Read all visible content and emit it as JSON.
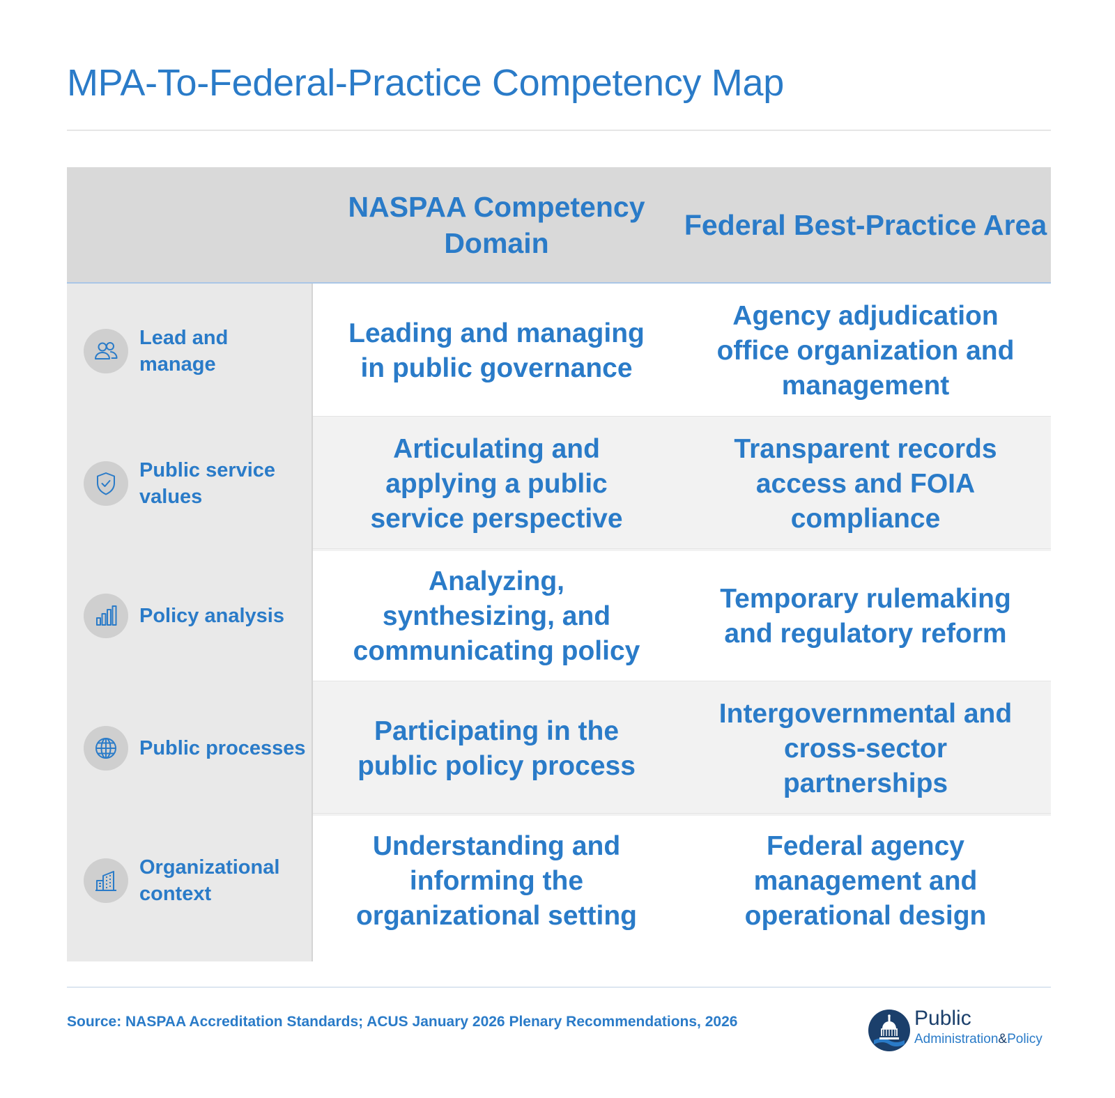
{
  "title": "MPA-To-Federal-Practice Competency Map",
  "table": {
    "headers": [
      "",
      "NASPAA Competency Domain",
      "Federal Best-Practice Area"
    ],
    "rows": [
      {
        "label": "Lead and manage",
        "icon": "people-icon",
        "naspaa": "Leading and managing in public governance",
        "federal": "Agency adjudication office organization and management"
      },
      {
        "label": "Public service values",
        "icon": "shield-check-icon",
        "naspaa": "Articulating and applying a public service perspective",
        "federal": "Transparent records access and FOIA compliance"
      },
      {
        "label": "Policy analysis",
        "icon": "bar-chart-icon",
        "naspaa": "Analyzing, synthesizing, and communicating policy",
        "federal": "Temporary rulemaking and regulatory reform"
      },
      {
        "label": "Public processes",
        "icon": "globe-icon",
        "naspaa": "Participating in the public policy process",
        "federal": "Intergovernmental and cross-sector partnerships"
      },
      {
        "label": "Organizational context",
        "icon": "buildings-icon",
        "naspaa": "Understanding and informing the organizational setting",
        "federal": "Federal agency management and operational design"
      }
    ]
  },
  "source": "Source: NASPAA Accreditation Standards; ACUS January 2026 Plenary Recommendations, 2026",
  "logo": {
    "word1": "Public",
    "word2a": "Administration",
    "word2b": "&",
    "word2c": "Policy"
  },
  "colors": {
    "accent": "#2a7bc8",
    "header_bg": "#d9d9d9",
    "left_col_bg": "#e9e9e9",
    "alt_row_bg": "#f2f2f2",
    "icon_bg": "#cfcfcf"
  }
}
